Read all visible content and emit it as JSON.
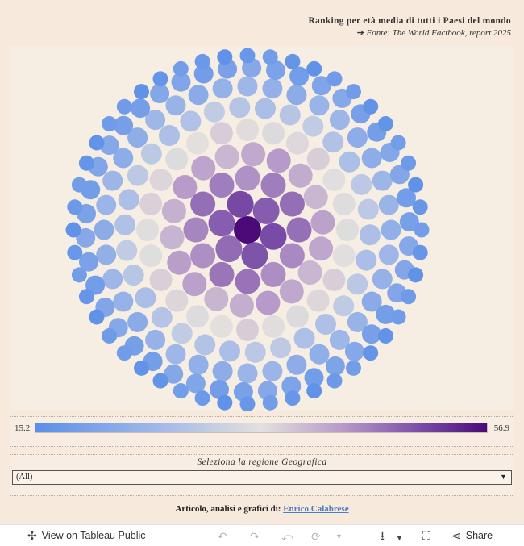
{
  "header": {
    "title": "Ranking per età media di tutti i Paesi del mondo",
    "source_arrow": "➔",
    "source_label": "Fonte:",
    "source_text": "The World Factbook, report 2025"
  },
  "chart_data": {
    "type": "packed-bubble",
    "title": "Ranking per età media di tutti i Paesi del mondo",
    "measure": "median age (years)",
    "color_range": [
      15.2,
      56.9
    ],
    "layout": "concentric rings, highest values in the center",
    "rings": [
      {
        "ring": 0,
        "count": 1,
        "value": 56.9
      },
      {
        "ring": 1,
        "count": 6,
        "value": 49.5
      },
      {
        "ring": 2,
        "count": 12,
        "value": 46.0
      },
      {
        "ring": 3,
        "count": 18,
        "value": 42.0
      },
      {
        "ring": 4,
        "count": 24,
        "value": 36.5
      },
      {
        "ring": 5,
        "count": 30,
        "value": 29.5
      },
      {
        "ring": 6,
        "count": 36,
        "value": 24.5
      },
      {
        "ring": 7,
        "count": 42,
        "value": 20.5
      },
      {
        "ring": 8,
        "count": 48,
        "value": 17.5
      }
    ],
    "colors": {
      "low": "#5b8fe8",
      "mid": "#e3e0dd",
      "high": "#4b0a78"
    }
  },
  "legend": {
    "min": "15.2",
    "max": "56.9"
  },
  "filter": {
    "label": "Seleziona la regione Geografica",
    "value": "(All)"
  },
  "credit": {
    "text": "Articolo, analisi e grafici di:",
    "author": "Enrico Calabrese"
  },
  "toolbar": {
    "view_label": "View on Tableau Public",
    "share_label": "Share"
  }
}
